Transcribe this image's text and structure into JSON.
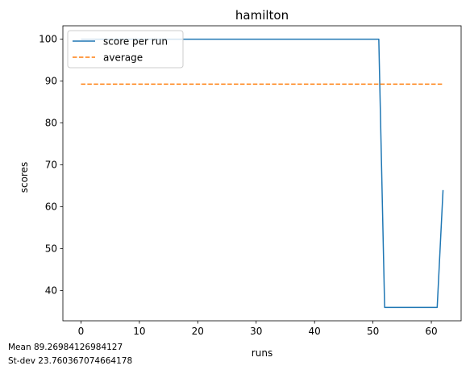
{
  "chart_data": {
    "type": "line",
    "title": "hamilton",
    "xlabel": "runs",
    "ylabel": "scores",
    "xlim": [
      -3.1,
      65.1
    ],
    "ylim": [
      32.8,
      103.2
    ],
    "xticks": [
      0,
      10,
      20,
      30,
      40,
      50,
      60
    ],
    "yticks": [
      40,
      50,
      60,
      70,
      80,
      90,
      100
    ],
    "legend_position": "top-left",
    "series": [
      {
        "name": "score per run",
        "style": "solid",
        "color": "#1f77b4",
        "x": [
          0,
          51,
          52,
          61,
          62
        ],
        "y": [
          100,
          100,
          36,
          36,
          64
        ]
      },
      {
        "name": "average",
        "style": "dashed",
        "color": "#ff7f0e",
        "x": [
          0,
          62
        ],
        "y": [
          89.26984126984127,
          89.26984126984127
        ]
      }
    ]
  },
  "stats": {
    "mean_text": "Mean 89.26984126984127",
    "stdev_text": "St-dev 23.760367074664178"
  }
}
